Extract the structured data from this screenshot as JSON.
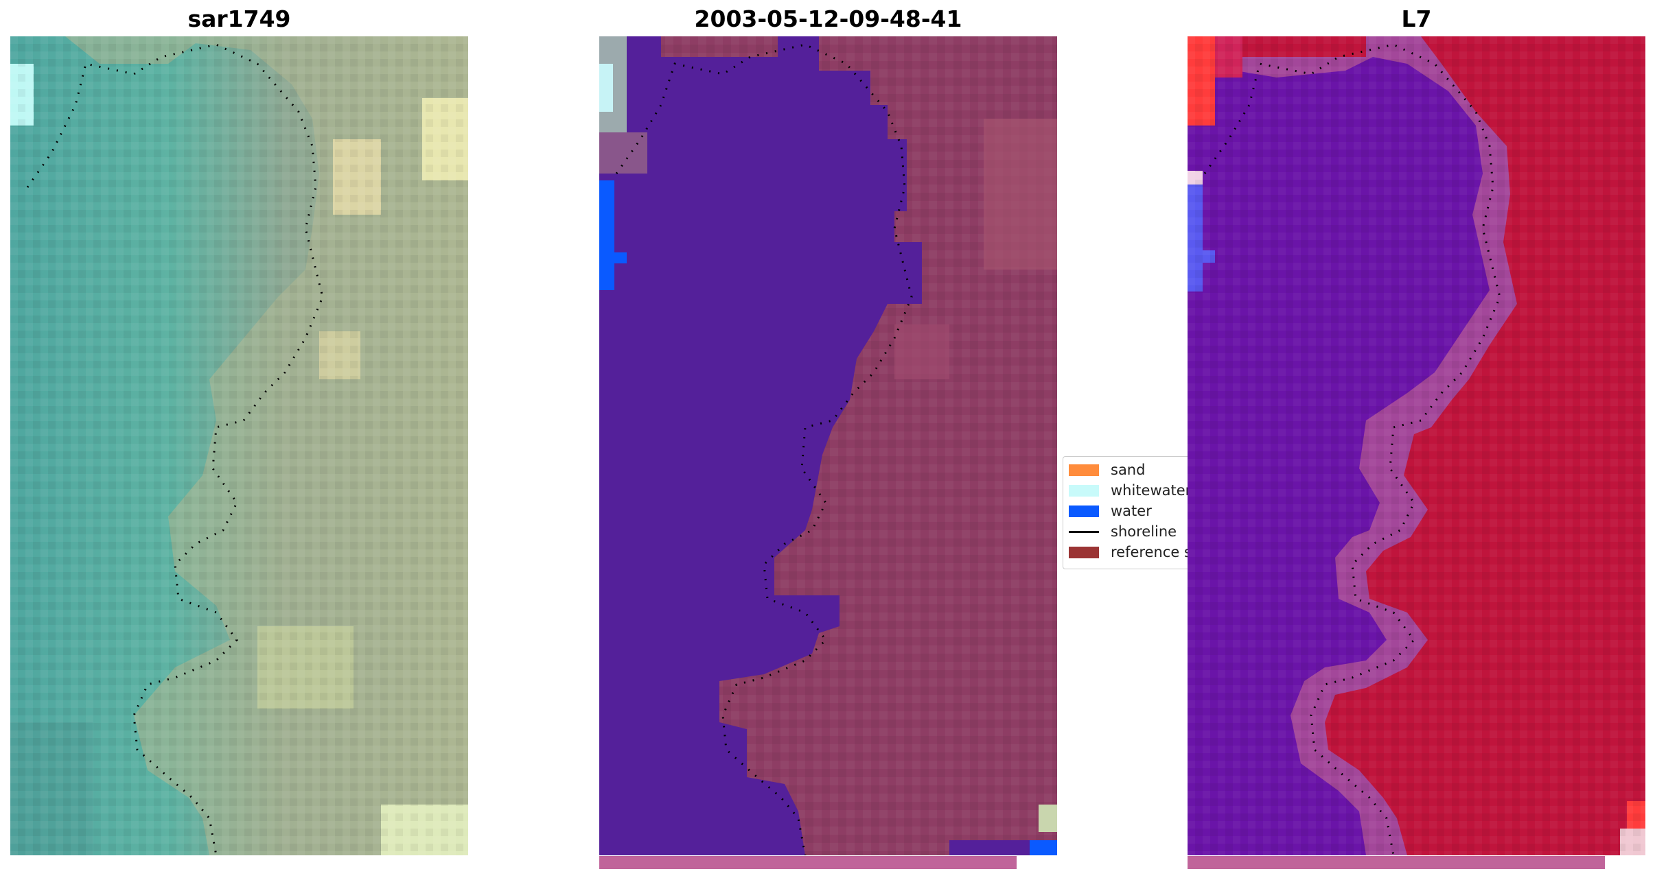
{
  "panels": [
    {
      "title": "sar1749"
    },
    {
      "title": "2003-05-12-09-48-41"
    },
    {
      "title": "L7"
    }
  ],
  "legend": {
    "items": [
      {
        "label": "sand",
        "kind": "patch",
        "color": "#ff8c3c"
      },
      {
        "label": "whitewater",
        "kind": "patch",
        "color": "#c8fafa"
      },
      {
        "label": "water",
        "kind": "patch",
        "color": "#0a5aff"
      },
      {
        "label": "shoreline",
        "kind": "line",
        "color": "#000000"
      },
      {
        "label": "reference s",
        "kind": "patch",
        "color": "#9b3434"
      }
    ]
  },
  "colors": {
    "water_class": "#54209a",
    "land_overlay": "#8e3d64",
    "strip": "#c0649a",
    "rgb_water": "#4fa39a",
    "rgb_land": "#a9b58f",
    "index_water": "#6a14a8",
    "index_land": "#c0143c"
  }
}
